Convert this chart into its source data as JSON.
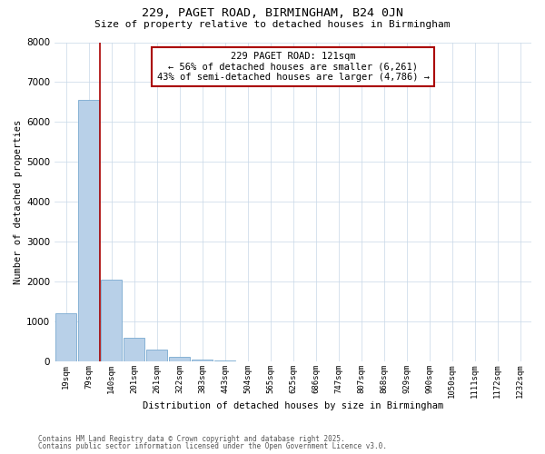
{
  "title1": "229, PAGET ROAD, BIRMINGHAM, B24 0JN",
  "title2": "Size of property relative to detached houses in Birmingham",
  "xlabel": "Distribution of detached houses by size in Birmingham",
  "ylabel": "Number of detached properties",
  "annotation_title": "229 PAGET ROAD: 121sqm",
  "annotation_line2": "← 56% of detached houses are smaller (6,261)",
  "annotation_line3": "43% of semi-detached houses are larger (4,786) →",
  "footer1": "Contains HM Land Registry data © Crown copyright and database right 2025.",
  "footer2": "Contains public sector information licensed under the Open Government Licence v3.0.",
  "property_bin_index": 1.5,
  "categories": [
    "19sqm",
    "79sqm",
    "140sqm",
    "201sqm",
    "261sqm",
    "322sqm",
    "383sqm",
    "443sqm",
    "504sqm",
    "565sqm",
    "625sqm",
    "686sqm",
    "747sqm",
    "807sqm",
    "868sqm",
    "929sqm",
    "990sqm",
    "1050sqm",
    "1111sqm",
    "1172sqm",
    "1232sqm"
  ],
  "values": [
    1200,
    6550,
    2050,
    580,
    300,
    110,
    35,
    12,
    5,
    2,
    1,
    0,
    0,
    0,
    0,
    0,
    0,
    0,
    0,
    0,
    0
  ],
  "bar_color": "#b8d0e8",
  "bar_edgecolor": "#7aaad0",
  "vline_color": "#aa0000",
  "annotation_box_edgecolor": "#aa0000",
  "background_color": "#ffffff",
  "grid_color": "#c8d8e8",
  "ylim": [
    0,
    8000
  ],
  "yticks": [
    0,
    1000,
    2000,
    3000,
    4000,
    5000,
    6000,
    7000,
    8000
  ]
}
